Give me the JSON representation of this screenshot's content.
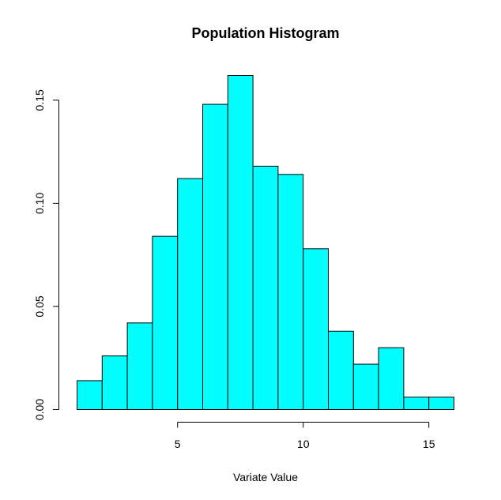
{
  "chart_data": {
    "type": "bar",
    "subtype": "histogram",
    "title": "Population Histogram",
    "xlabel": "Variate Value",
    "ylabel": "",
    "bin_edges": [
      1,
      2,
      3,
      4,
      5,
      6,
      7,
      8,
      9,
      10,
      11,
      12,
      13,
      14,
      15,
      16
    ],
    "values": [
      0.014,
      0.026,
      0.042,
      0.084,
      0.112,
      0.148,
      0.162,
      0.118,
      0.114,
      0.078,
      0.038,
      0.022,
      0.03,
      0.006,
      0.006
    ],
    "xlim": [
      1,
      16
    ],
    "ylim": [
      0,
      0.162
    ],
    "x_ticks": [
      5,
      10,
      15
    ],
    "x_tick_labels": [
      "5",
      "10",
      "15"
    ],
    "y_ticks": [
      0,
      0.05,
      0.1,
      0.15
    ],
    "y_tick_labels": [
      "0.00",
      "0.05",
      "0.10",
      "0.15"
    ],
    "bar_color": "#00FFFF",
    "bar_edge_color": "#000000",
    "grid": false,
    "legend": "none"
  }
}
